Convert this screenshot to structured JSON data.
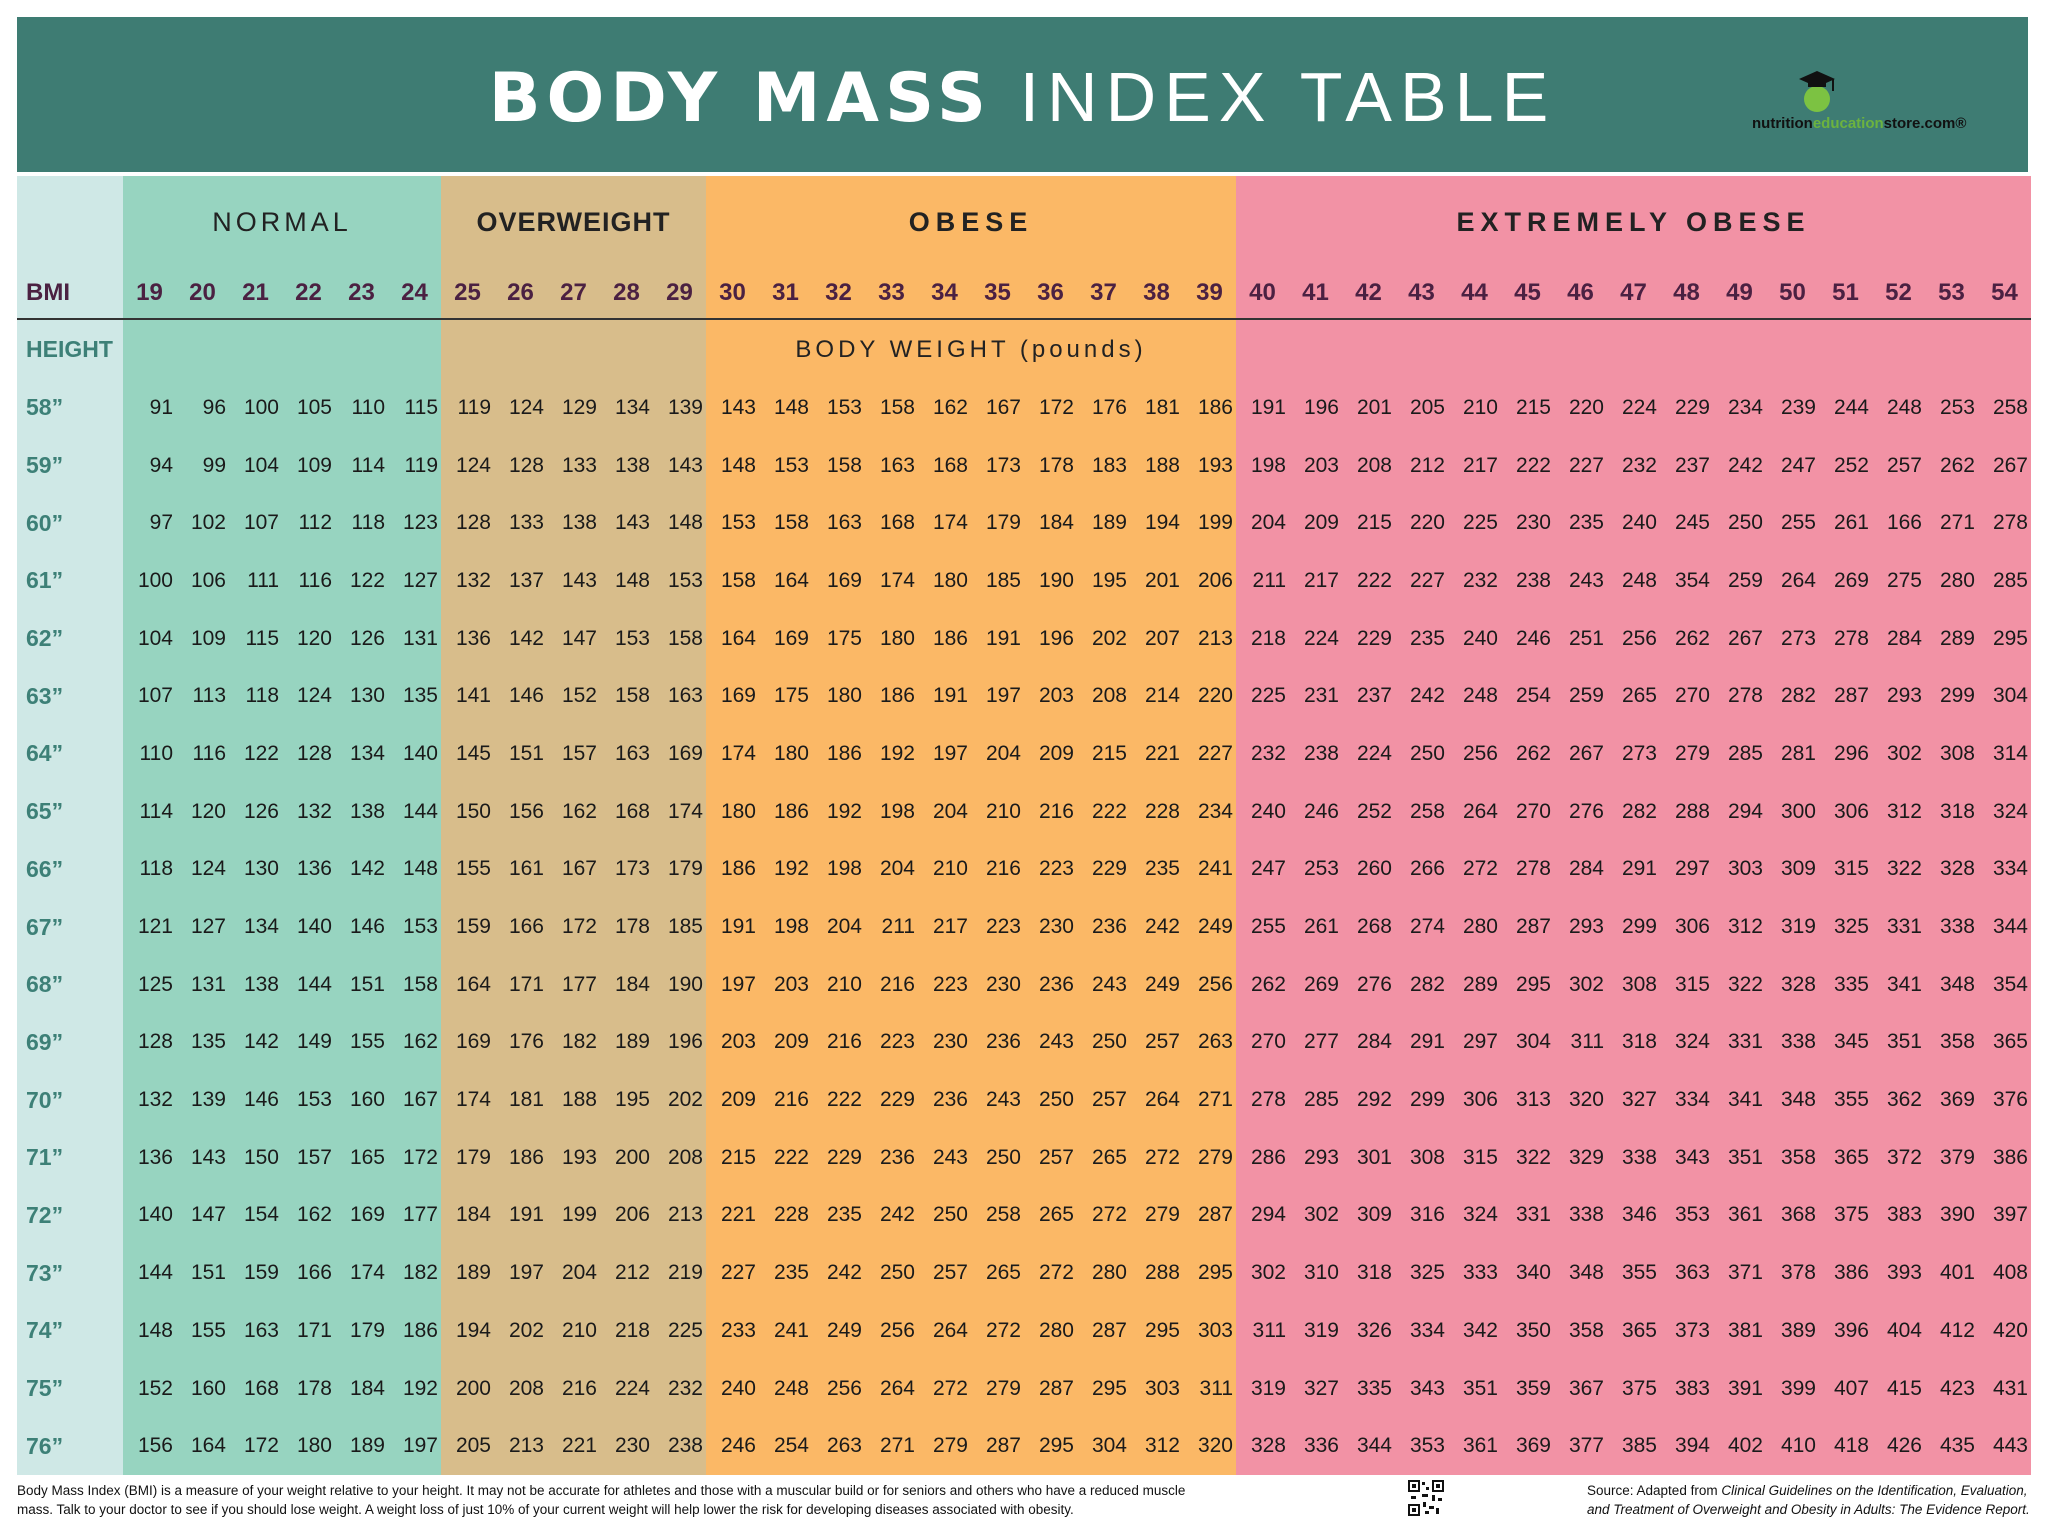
{
  "header": {
    "title_bold": "BODY MASS",
    "title_light": "INDEX TABLE",
    "logo": [
      "nutrition",
      "education",
      "store.com®"
    ]
  },
  "table": {
    "bmi_label": "BMI",
    "height_label": "HEIGHT",
    "weight_label": "BODY WEIGHT (pounds)",
    "groups": [
      {
        "label": "NORMAL",
        "bmi": [
          19,
          20,
          21,
          22,
          23,
          24
        ]
      },
      {
        "label": "OVERWEIGHT",
        "bmi": [
          25,
          26,
          27,
          28,
          29
        ]
      },
      {
        "label": "OBESE",
        "bmi": [
          30,
          31,
          32,
          33,
          34,
          35,
          36,
          37,
          38,
          39
        ]
      },
      {
        "label": "EXTREMELY OBESE",
        "bmi": [
          40,
          41,
          42,
          43,
          44,
          45,
          46,
          47,
          48,
          49,
          50,
          51,
          52,
          53,
          54
        ]
      }
    ],
    "rows": [
      {
        "height": "58”",
        "weights": [
          91,
          96,
          100,
          105,
          110,
          115,
          119,
          124,
          129,
          134,
          139,
          143,
          148,
          153,
          158,
          162,
          167,
          172,
          176,
          181,
          186,
          191,
          196,
          201,
          205,
          210,
          215,
          220,
          224,
          229,
          234,
          239,
          244,
          248,
          253,
          258
        ]
      },
      {
        "height": "59”",
        "weights": [
          94,
          99,
          104,
          109,
          114,
          119,
          124,
          128,
          133,
          138,
          143,
          148,
          153,
          158,
          163,
          168,
          173,
          178,
          183,
          188,
          193,
          198,
          203,
          208,
          212,
          217,
          222,
          227,
          232,
          237,
          242,
          247,
          252,
          257,
          262,
          267
        ]
      },
      {
        "height": "60”",
        "weights": [
          97,
          102,
          107,
          112,
          118,
          123,
          128,
          133,
          138,
          143,
          148,
          153,
          158,
          163,
          168,
          174,
          179,
          184,
          189,
          194,
          199,
          204,
          209,
          215,
          220,
          225,
          230,
          235,
          240,
          245,
          250,
          255,
          261,
          166,
          271,
          278
        ]
      },
      {
        "height": "61”",
        "weights": [
          100,
          106,
          111,
          116,
          122,
          127,
          132,
          137,
          143,
          148,
          153,
          158,
          164,
          169,
          174,
          180,
          185,
          190,
          195,
          201,
          206,
          211,
          217,
          222,
          227,
          232,
          238,
          243,
          248,
          354,
          259,
          264,
          269,
          275,
          280,
          285
        ]
      },
      {
        "height": "62”",
        "weights": [
          104,
          109,
          115,
          120,
          126,
          131,
          136,
          142,
          147,
          153,
          158,
          164,
          169,
          175,
          180,
          186,
          191,
          196,
          202,
          207,
          213,
          218,
          224,
          229,
          235,
          240,
          246,
          251,
          256,
          262,
          267,
          273,
          278,
          284,
          289,
          295
        ]
      },
      {
        "height": "63”",
        "weights": [
          107,
          113,
          118,
          124,
          130,
          135,
          141,
          146,
          152,
          158,
          163,
          169,
          175,
          180,
          186,
          191,
          197,
          203,
          208,
          214,
          220,
          225,
          231,
          237,
          242,
          248,
          254,
          259,
          265,
          270,
          278,
          282,
          287,
          293,
          299,
          304
        ]
      },
      {
        "height": "64”",
        "weights": [
          110,
          116,
          122,
          128,
          134,
          140,
          145,
          151,
          157,
          163,
          169,
          174,
          180,
          186,
          192,
          197,
          204,
          209,
          215,
          221,
          227,
          232,
          238,
          224,
          250,
          256,
          262,
          267,
          273,
          279,
          285,
          281,
          296,
          302,
          308,
          314
        ]
      },
      {
        "height": "65”",
        "weights": [
          114,
          120,
          126,
          132,
          138,
          144,
          150,
          156,
          162,
          168,
          174,
          180,
          186,
          192,
          198,
          204,
          210,
          216,
          222,
          228,
          234,
          240,
          246,
          252,
          258,
          264,
          270,
          276,
          282,
          288,
          294,
          300,
          306,
          312,
          318,
          324
        ]
      },
      {
        "height": "66”",
        "weights": [
          118,
          124,
          130,
          136,
          142,
          148,
          155,
          161,
          167,
          173,
          179,
          186,
          192,
          198,
          204,
          210,
          216,
          223,
          229,
          235,
          241,
          247,
          253,
          260,
          266,
          272,
          278,
          284,
          291,
          297,
          303,
          309,
          315,
          322,
          328,
          334
        ]
      },
      {
        "height": "67”",
        "weights": [
          121,
          127,
          134,
          140,
          146,
          153,
          159,
          166,
          172,
          178,
          185,
          191,
          198,
          204,
          211,
          217,
          223,
          230,
          236,
          242,
          249,
          255,
          261,
          268,
          274,
          280,
          287,
          293,
          299,
          306,
          312,
          319,
          325,
          331,
          338,
          344
        ]
      },
      {
        "height": "68”",
        "weights": [
          125,
          131,
          138,
          144,
          151,
          158,
          164,
          171,
          177,
          184,
          190,
          197,
          203,
          210,
          216,
          223,
          230,
          236,
          243,
          249,
          256,
          262,
          269,
          276,
          282,
          289,
          295,
          302,
          308,
          315,
          322,
          328,
          335,
          341,
          348,
          354
        ]
      },
      {
        "height": "69”",
        "weights": [
          128,
          135,
          142,
          149,
          155,
          162,
          169,
          176,
          182,
          189,
          196,
          203,
          209,
          216,
          223,
          230,
          236,
          243,
          250,
          257,
          263,
          270,
          277,
          284,
          291,
          297,
          304,
          311,
          318,
          324,
          331,
          338,
          345,
          351,
          358,
          365
        ]
      },
      {
        "height": "70”",
        "weights": [
          132,
          139,
          146,
          153,
          160,
          167,
          174,
          181,
          188,
          195,
          202,
          209,
          216,
          222,
          229,
          236,
          243,
          250,
          257,
          264,
          271,
          278,
          285,
          292,
          299,
          306,
          313,
          320,
          327,
          334,
          341,
          348,
          355,
          362,
          369,
          376
        ]
      },
      {
        "height": "71”",
        "weights": [
          136,
          143,
          150,
          157,
          165,
          172,
          179,
          186,
          193,
          200,
          208,
          215,
          222,
          229,
          236,
          243,
          250,
          257,
          265,
          272,
          279,
          286,
          293,
          301,
          308,
          315,
          322,
          329,
          338,
          343,
          351,
          358,
          365,
          372,
          379,
          386
        ]
      },
      {
        "height": "72”",
        "weights": [
          140,
          147,
          154,
          162,
          169,
          177,
          184,
          191,
          199,
          206,
          213,
          221,
          228,
          235,
          242,
          250,
          258,
          265,
          272,
          279,
          287,
          294,
          302,
          309,
          316,
          324,
          331,
          338,
          346,
          353,
          361,
          368,
          375,
          383,
          390,
          397
        ]
      },
      {
        "height": "73”",
        "weights": [
          144,
          151,
          159,
          166,
          174,
          182,
          189,
          197,
          204,
          212,
          219,
          227,
          235,
          242,
          250,
          257,
          265,
          272,
          280,
          288,
          295,
          302,
          310,
          318,
          325,
          333,
          340,
          348,
          355,
          363,
          371,
          378,
          386,
          393,
          401,
          408
        ]
      },
      {
        "height": "74”",
        "weights": [
          148,
          155,
          163,
          171,
          179,
          186,
          194,
          202,
          210,
          218,
          225,
          233,
          241,
          249,
          256,
          264,
          272,
          280,
          287,
          295,
          303,
          311,
          319,
          326,
          334,
          342,
          350,
          358,
          365,
          373,
          381,
          389,
          396,
          404,
          412,
          420
        ]
      },
      {
        "height": "75”",
        "weights": [
          152,
          160,
          168,
          178,
          184,
          192,
          200,
          208,
          216,
          224,
          232,
          240,
          248,
          256,
          264,
          272,
          279,
          287,
          295,
          303,
          311,
          319,
          327,
          335,
          343,
          351,
          359,
          367,
          375,
          383,
          391,
          399,
          407,
          415,
          423,
          431
        ]
      },
      {
        "height": "76”",
        "weights": [
          156,
          164,
          172,
          180,
          189,
          197,
          205,
          213,
          221,
          230,
          238,
          246,
          254,
          263,
          271,
          279,
          287,
          295,
          304,
          312,
          320,
          328,
          336,
          344,
          353,
          361,
          369,
          377,
          385,
          394,
          402,
          410,
          418,
          426,
          435,
          443
        ]
      }
    ]
  },
  "footer": {
    "note": "Body Mass Index (BMI) is a measure of your weight relative to your height. It may not be accurate for athletes and those with a muscular build or for seniors and others who have a reduced muscle mass. Talk to your doctor to see if you should lose weight. A weight loss of just 10% of your current weight will help lower the risk for developing diseases associated with obesity.",
    "source_prefix": "Source:  Adapted from ",
    "source_title": "Clinical Guidelines on the Identification, Evaluation, and Treatment of Overweight and Obesity in Adults: The Evidence Report."
  }
}
